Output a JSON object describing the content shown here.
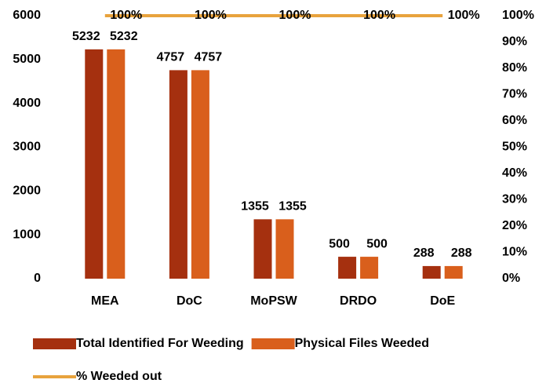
{
  "chart_data": {
    "type": "bar",
    "categories": [
      "MEA",
      "DoC",
      "MoPSW",
      "DRDO",
      "DoE"
    ],
    "series": [
      {
        "name": "Total Identified For Weeding",
        "color": "#a5300f",
        "values": [
          5232,
          4757,
          1355,
          500,
          288
        ]
      },
      {
        "name": "Physical Files Weeded",
        "color": "#d95f1c",
        "values": [
          5232,
          4757,
          1355,
          500,
          288
        ]
      },
      {
        "name": "% Weeded out",
        "color": "#e8a33d",
        "type": "line",
        "axis": "y2",
        "values": [
          100,
          100,
          100,
          100,
          100
        ],
        "value_labels": [
          "100%",
          "100%",
          "100%",
          "100%",
          "100%"
        ]
      }
    ],
    "ylim": [
      0,
      6000
    ],
    "yticks": [
      0,
      1000,
      2000,
      3000,
      4000,
      5000,
      6000
    ],
    "y2lim": [
      0,
      100
    ],
    "y2ticks": [
      {
        "value": 0,
        "label": "0%"
      },
      {
        "value": 10,
        "label": "10%"
      },
      {
        "value": 20,
        "label": "20%"
      },
      {
        "value": 30,
        "label": "30%"
      },
      {
        "value": 40,
        "label": "40%"
      },
      {
        "value": 50,
        "label": "50%"
      },
      {
        "value": 60,
        "label": "60%"
      },
      {
        "value": 70,
        "label": "70%"
      },
      {
        "value": 80,
        "label": "80%"
      },
      {
        "value": 90,
        "label": "90%"
      },
      {
        "value": 100,
        "label": "100%"
      }
    ],
    "grid": false,
    "legend": "bottom"
  }
}
